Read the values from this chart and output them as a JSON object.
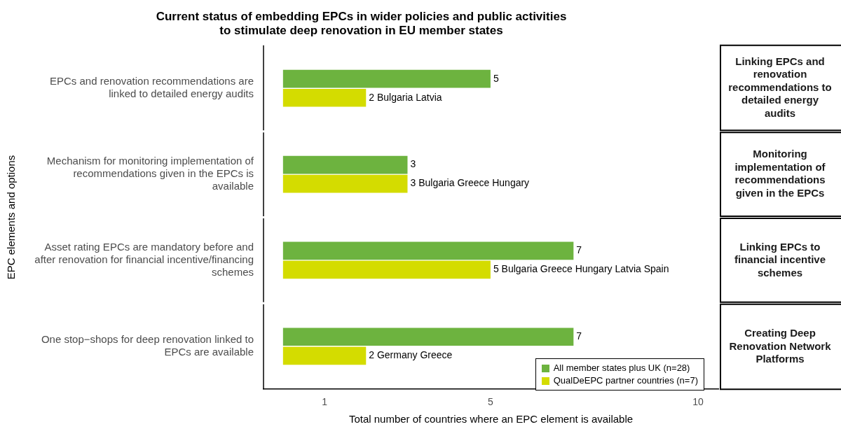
{
  "chart_data": {
    "type": "bar",
    "orientation": "horizontal",
    "title": "Current status of embedding EPCs in wider policies and public activities\nto stimulate deep renovation in EU member states",
    "xlabel": "Total number of countries where an EPC element is available",
    "ylabel": "EPC elements and options",
    "categories": [
      "EPCs and renovation recommendations are linked to detailed energy audits",
      "Mechanism for monitoring implementation of recommendations given in the EPCs is available",
      "Asset rating EPCs are mandatory before and after renovation for financial incentive/financing schemes",
      "One stop−shops for deep renovation linked to EPCs are available"
    ],
    "series": [
      {
        "name": "All member states plus UK (n=28)",
        "color": "#6db33f",
        "values": [
          5,
          3,
          7,
          7
        ],
        "value_labels": [
          "5",
          "3",
          "7",
          "7"
        ]
      },
      {
        "name": "QualDeEPC partner countries (n=7)",
        "color": "#d4dc00",
        "values": [
          2,
          3,
          5,
          2
        ],
        "value_labels": [
          "2 Bulgaria Latvia",
          "3 Bulgaria Greece Hungary",
          "5 Bulgaria Greece Hungary Latvia Spain",
          "2 Germany Greece"
        ]
      }
    ],
    "xlim": [
      -0.47,
      10.49
    ],
    "xticks": [
      1,
      5,
      10
    ],
    "grid": false,
    "legend": "bottom right",
    "annotations": [
      "Linking EPCs and renovation recommendations to detailed energy audits",
      "Monitoring implementation of recommendations given in the EPCs",
      "Linking EPCs to financial incentive schemes",
      "Creating Deep Renovation Network Platforms"
    ]
  }
}
